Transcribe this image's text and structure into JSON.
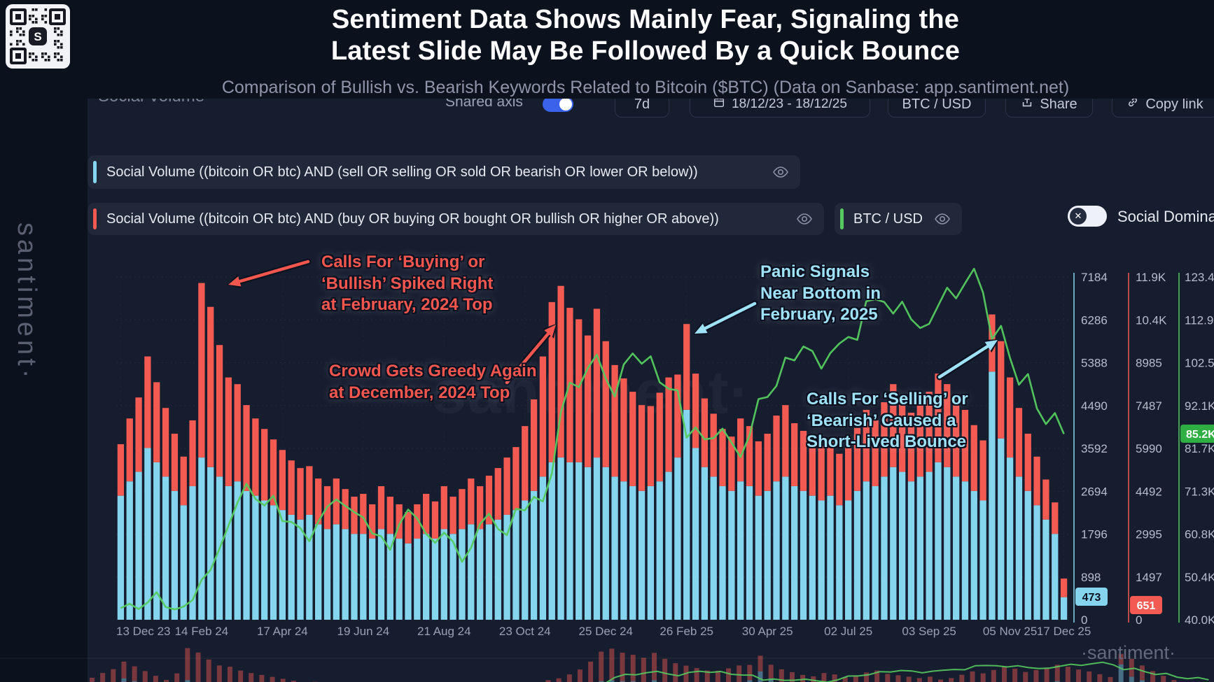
{
  "header": {
    "title_line1": "Sentiment Data Shows Mainly Fear, Signaling the",
    "title_line2": "Latest Slide May Be Followed By a Quick Bounce",
    "subtitle": "Comparison of Bullish vs. Bearish Keywords Related to Bitcoin ($BTC) (Data on Sanbase: app.santiment.net)"
  },
  "toolbar": {
    "metric_label": "Social Volume",
    "shared_axis_label": "Shared axis",
    "interval_label": "7d",
    "date_range": "18/12/23 - 18/12/25",
    "pair_label": "BTC / USD",
    "share_label": "Share",
    "copy_link_label": "Copy link"
  },
  "legend": {
    "series_sell": "Social Volume ((bitcoin OR btc) AND (sell OR selling OR sold OR bearish OR lower OR below))",
    "series_buy": "Social Volume ((bitcoin OR btc) AND (buy OR buying OR bought OR bullish OR higher OR above))",
    "price_label": "BTC / USD",
    "dominance_label": "Social Dominance"
  },
  "icons": {
    "toggle_off_glyph": "✕",
    "qr_logo": "S"
  },
  "watermarks": {
    "left": "santiment·",
    "center": "·santiment·",
    "bottom": "·santiment·"
  },
  "colors": {
    "sell": "#85d5ef",
    "buy": "#f25a52",
    "price": "#55cb5f",
    "background": "#0c111e",
    "panel": "#161d2e"
  },
  "annotations": [
    {
      "id": "buying-spike-feb-2024",
      "color": "#f2574f",
      "text": "Calls For ‘Buying’ or\n‘Bullish’ Spiked Right\nat February, 2024 Top"
    },
    {
      "id": "greedy-dec-2024",
      "color": "#f2574f",
      "text": "Crowd Gets Greedy Again\nat December, 2024 Top"
    },
    {
      "id": "panic-feb-2025",
      "color": "#9fe2f7",
      "text": "Panic Signals\nNear Bottom in\nFebruary, 2025"
    },
    {
      "id": "bearish-bounce-2025",
      "color": "#9fe2f7",
      "text": "Calls For ‘Selling’ or\n‘Bearish’ Caused a\nShort-Lived Bounce"
    }
  ],
  "chart_data": {
    "type": "bar",
    "subtype": "stacked bars + price line",
    "title": "Bullish vs Bearish keyword Social Volume with BTC/USD",
    "grid": true,
    "legend_position": "top",
    "x_tick_labels": [
      "13 Dec 23",
      "14 Feb 24",
      "17 Apr 24",
      "19 Jun 24",
      "21 Aug 24",
      "23 Oct 24",
      "25 Dec 24",
      "26 Feb 25",
      "30 Apr 25",
      "02 Jul 25",
      "03 Sep 25",
      "05 Nov 25",
      "17 Dec 25"
    ],
    "x_tick_indices": [
      0,
      9,
      18,
      27,
      36,
      45,
      54,
      63,
      72,
      81,
      90,
      99,
      105
    ],
    "current_values": {
      "sell": "473",
      "buy": "651",
      "price": "85.2K"
    },
    "series": [
      {
        "name": "Social Volume (sell OR selling OR sold OR bearish OR lower OR below)",
        "type": "bar",
        "color": "#85d5ef",
        "axis_max": 7184,
        "axis_ticks": [
          "7184",
          "6286",
          "5388",
          "4490",
          "3592",
          "2694",
          "1796",
          "898",
          "0"
        ],
        "values": [
          2600,
          2900,
          3100,
          3600,
          3300,
          3000,
          2700,
          2400,
          2800,
          3400,
          3200,
          3000,
          2800,
          2900,
          2700,
          2600,
          2500,
          2400,
          2300,
          2200,
          2100,
          2200,
          2000,
          1900,
          2000,
          1900,
          1800,
          1800,
          1700,
          1900,
          1800,
          1700,
          1600,
          1700,
          1800,
          1700,
          1900,
          1800,
          1900,
          2000,
          1900,
          2000,
          2100,
          2200,
          2300,
          2500,
          2700,
          3000,
          3300,
          3400,
          3300,
          3300,
          3200,
          3400,
          3200,
          3000,
          2900,
          2800,
          2700,
          2800,
          2900,
          3100,
          3400,
          4400,
          3600,
          3200,
          3000,
          2800,
          2700,
          2900,
          2800,
          2600,
          2700,
          2900,
          3000,
          2800,
          2700,
          2600,
          2500,
          2600,
          2400,
          2500,
          2700,
          2900,
          2800,
          3000,
          3200,
          3100,
          2900,
          3000,
          3100,
          3300,
          3200,
          3000,
          2900,
          2700,
          2500,
          5200,
          3800,
          3400,
          3000,
          2700,
          2400,
          2100,
          1800,
          473
        ]
      },
      {
        "name": "Social Volume (buy OR buying OR bought OR bullish OR higher OR above)",
        "type": "bar",
        "color": "#f25a52",
        "axis_max": 11980,
        "axis_ticks": [
          "11.9K",
          "10.4K",
          "8985",
          "7487",
          "5990",
          "4492",
          "2995",
          "1497",
          "0"
        ],
        "values": [
          1800,
          2200,
          2600,
          3200,
          2800,
          2400,
          2000,
          1700,
          2300,
          6100,
          5600,
          4600,
          3800,
          3400,
          3000,
          2700,
          2500,
          2300,
          2100,
          1900,
          1800,
          1700,
          1600,
          1500,
          1600,
          1400,
          1300,
          1400,
          1200,
          1500,
          1300,
          1200,
          1100,
          1200,
          1400,
          1300,
          1500,
          1300,
          1400,
          1600,
          1500,
          1700,
          1800,
          2000,
          2200,
          2600,
          3200,
          4200,
          5600,
          6000,
          5400,
          5000,
          4600,
          5200,
          4400,
          3900,
          3600,
          3300,
          3000,
          2800,
          3100,
          3300,
          2900,
          3000,
          2600,
          2400,
          2200,
          2000,
          1900,
          2200,
          2100,
          1900,
          2000,
          2300,
          2500,
          2200,
          2100,
          2000,
          1900,
          2000,
          1800,
          1900,
          2200,
          2500,
          2300,
          2600,
          2900,
          2700,
          2400,
          2600,
          2800,
          3100,
          2900,
          2700,
          2500,
          2300,
          2100,
          2000,
          3400,
          2800,
          2400,
          2000,
          1700,
          1400,
          1100,
          651
        ]
      },
      {
        "name": "BTC / USD",
        "type": "line",
        "color": "#55cb5f",
        "unit": "K USD",
        "axis_min": 40.0,
        "axis_max": 123.4,
        "axis_ticks": [
          "123.4K",
          "112.9K",
          "102.5K",
          "92.1K",
          "81.7K",
          "71.3K",
          "60.8K",
          "50.4K",
          "40.0K"
        ],
        "values": [
          42.8,
          43.9,
          42.6,
          44.2,
          46.7,
          43.1,
          42.5,
          43.2,
          44.8,
          49.7,
          52.1,
          57.3,
          62.9,
          68.5,
          73.1,
          69.4,
          67.8,
          70.2,
          64.0,
          63.8,
          62.3,
          59.1,
          63.9,
          67.5,
          69.3,
          67.7,
          66.2,
          64.9,
          61.0,
          60.3,
          57.0,
          63.2,
          66.8,
          64.7,
          60.9,
          58.7,
          61.2,
          59.0,
          54.1,
          57.5,
          63.3,
          65.8,
          62.1,
          60.6,
          67.0,
          66.6,
          69.9,
          68.8,
          75.6,
          90.5,
          97.7,
          96.6,
          101.2,
          104.5,
          98.7,
          94.3,
          102.1,
          104.8,
          102.3,
          104.1,
          97.8,
          96.2,
          95.8,
          84.3,
          86.8,
          83.9,
          84.2,
          86.5,
          83.1,
          79.6,
          84.8,
          93.7,
          94.2,
          96.9,
          103.8,
          103.1,
          106.5,
          105.4,
          101.1,
          104.9,
          107.2,
          108.8,
          108.1,
          117.5,
          118.0,
          117.3,
          114.5,
          117.4,
          113.1,
          111.0,
          112.0,
          116.4,
          120.8,
          118.2,
          121.9,
          125.4,
          119.6,
          108.3,
          111.5,
          103.7,
          97.2,
          99.8,
          91.4,
          87.6,
          90.3,
          85.2
        ]
      }
    ]
  }
}
